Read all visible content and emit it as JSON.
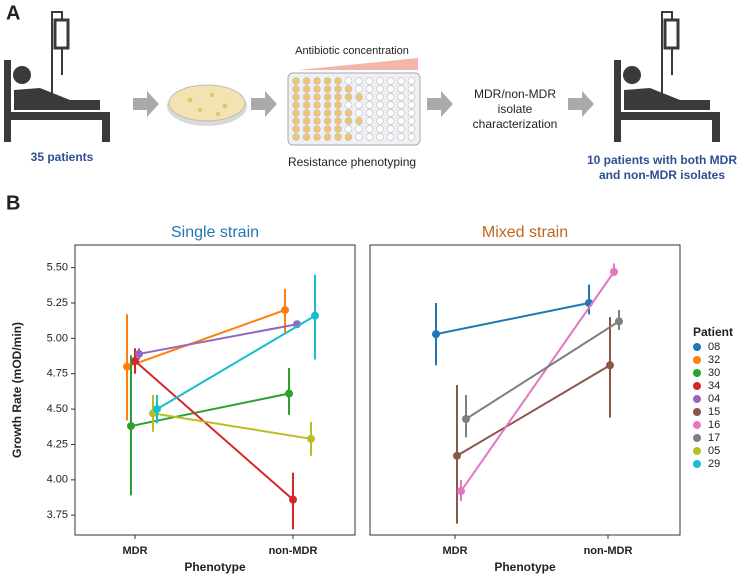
{
  "panel_a": {
    "label": "A",
    "start_caption": "35 patients",
    "gradient_caption": "Antibiotic concentration",
    "plate_caption": "Resistance phenotyping",
    "characterization_lines": [
      "MDR/non-MDR",
      "isolate",
      "characterization"
    ],
    "end_caption_lines": [
      "10 patients with both MDR",
      "and non-MDR isolates"
    ]
  },
  "panel_b_label": "B",
  "legend_title": "Patient",
  "chart_data": [
    {
      "type": "line",
      "title": "Single strain",
      "title_color": "#1f77b4",
      "categories": [
        "MDR",
        "non-MDR"
      ],
      "xlabel": "Phenotype",
      "ylabel": "Growth Rate (mOD/min)",
      "ylim": [
        3.61,
        5.66
      ],
      "yticks": [
        {
          "value": 5.5,
          "label": "5.50"
        },
        5.25,
        {
          "value": 5.0,
          "label": "5.00"
        },
        4.75,
        {
          "value": 4.5,
          "label": "4.50"
        },
        4.25,
        {
          "value": 4.0,
          "label": "4.00"
        },
        3.75
      ],
      "series": [
        {
          "name": "32",
          "color": "#ff7f0e",
          "values": [
            4.8,
            5.2
          ],
          "ci": [
            [
              4.42,
              5.17
            ],
            [
              5.04,
              5.35
            ]
          ]
        },
        {
          "name": "30",
          "color": "#2ca02c",
          "values": [
            4.38,
            4.61
          ],
          "ci": [
            [
              3.89,
              4.88
            ],
            [
              4.46,
              4.79
            ]
          ]
        },
        {
          "name": "34",
          "color": "#d62728",
          "values": [
            4.84,
            3.86
          ],
          "ci": [
            [
              4.75,
              4.93
            ],
            [
              3.65,
              4.05
            ]
          ]
        },
        {
          "name": "04",
          "color": "#9467bd",
          "values": [
            4.89,
            5.1
          ],
          "ci": [
            [
              4.85,
              4.93
            ],
            [
              5.09,
              5.11
            ]
          ]
        },
        {
          "name": "05",
          "color": "#bcbd22",
          "values": [
            4.47,
            4.29
          ],
          "ci": [
            [
              4.34,
              4.6
            ],
            [
              4.17,
              4.41
            ]
          ]
        },
        {
          "name": "29",
          "color": "#17becf",
          "values": [
            4.5,
            5.16
          ],
          "ci": [
            [
              4.4,
              4.6
            ],
            [
              4.85,
              5.45
            ]
          ]
        }
      ]
    },
    {
      "type": "line",
      "title": "Mixed strain",
      "title_color": "#c0661e",
      "categories": [
        "MDR",
        "non-MDR"
      ],
      "xlabel": "Phenotype",
      "ylim": [
        3.61,
        5.66
      ],
      "series": [
        {
          "name": "08",
          "color": "#1f77b4",
          "values": [
            5.03,
            5.25
          ],
          "ci": [
            [
              4.81,
              5.25
            ],
            [
              5.17,
              5.38
            ]
          ]
        },
        {
          "name": "15",
          "color": "#8c564b",
          "values": [
            4.17,
            4.81
          ],
          "ci": [
            [
              3.69,
              4.67
            ],
            [
              4.44,
              5.15
            ]
          ]
        },
        {
          "name": "16",
          "color": "#e377c2",
          "values": [
            3.92,
            5.47
          ],
          "ci": [
            [
              3.85,
              4.0
            ],
            [
              5.44,
              5.53
            ]
          ]
        },
        {
          "name": "17",
          "color": "#7f7f7f",
          "values": [
            4.43,
            5.12
          ],
          "ci": [
            [
              4.3,
              4.6
            ],
            [
              5.06,
              5.2
            ]
          ]
        }
      ]
    }
  ]
}
